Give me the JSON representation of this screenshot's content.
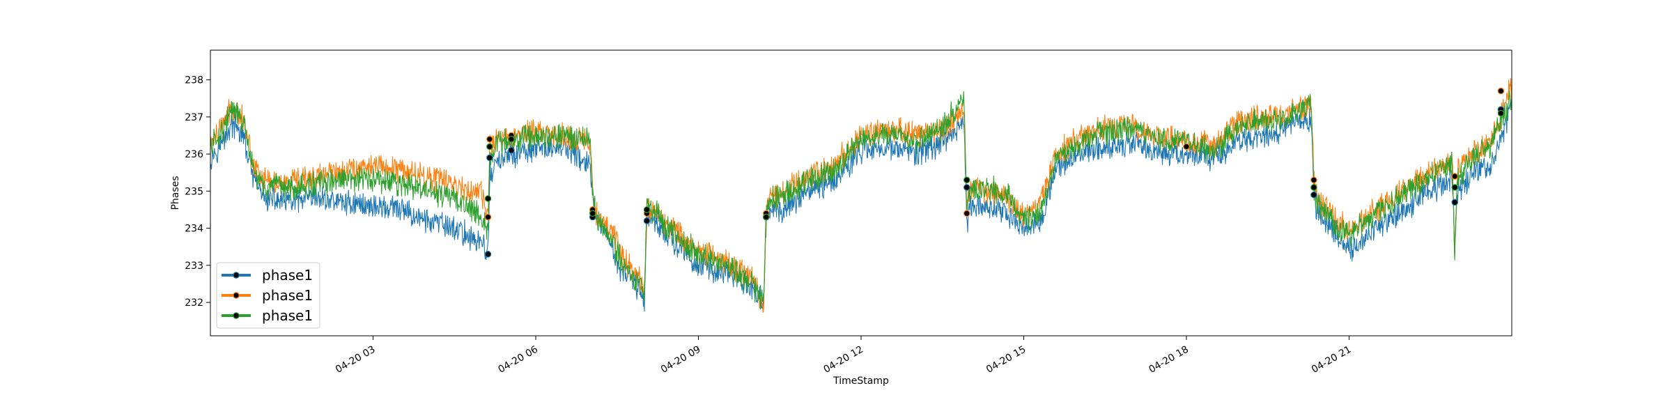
{
  "chart_data": {
    "type": "line",
    "title": "",
    "xlabel": "TimeStamp",
    "ylabel": "Phases",
    "x_range_hours": [
      0,
      24
    ],
    "ylim": [
      231.1,
      238.8
    ],
    "x_ticks": [
      {
        "hour": 3,
        "label": "04-20 03"
      },
      {
        "hour": 6,
        "label": "04-20 06"
      },
      {
        "hour": 9,
        "label": "04-20 09"
      },
      {
        "hour": 12,
        "label": "04-20 12"
      },
      {
        "hour": 15,
        "label": "04-20 15"
      },
      {
        "hour": 18,
        "label": "04-20 18"
      },
      {
        "hour": 21,
        "label": "04-20 21"
      }
    ],
    "y_ticks": [
      {
        "value": 232,
        "label": "232"
      },
      {
        "value": 233,
        "label": "233"
      },
      {
        "value": 234,
        "label": "234"
      },
      {
        "value": 235,
        "label": "235"
      },
      {
        "value": 236,
        "label": "236"
      },
      {
        "value": 237,
        "label": "237"
      },
      {
        "value": 238,
        "label": "238"
      }
    ],
    "legend_position": "lower-left",
    "series": [
      {
        "name": "phase1",
        "color": "#1f77b4",
        "x": [
          0.0,
          0.2,
          0.4,
          0.6,
          0.8,
          1.0,
          1.5,
          2.0,
          2.5,
          3.0,
          3.5,
          4.0,
          4.5,
          5.0,
          5.12,
          5.15,
          5.3,
          5.6,
          6.0,
          6.5,
          7.0,
          7.05,
          7.1,
          7.4,
          7.6,
          7.9,
          8.0,
          8.05,
          8.1,
          8.5,
          9.0,
          9.5,
          10.0,
          10.2,
          10.25,
          10.3,
          10.6,
          11.0,
          11.5,
          12.0,
          12.5,
          13.0,
          13.5,
          13.9,
          13.95,
          14.0,
          14.3,
          14.7,
          15.0,
          15.3,
          15.6,
          16.0,
          16.5,
          17.0,
          17.5,
          18.0,
          18.5,
          19.0,
          19.5,
          20.0,
          20.3,
          20.35,
          20.4,
          20.8,
          21.0,
          21.5,
          22.0,
          22.5,
          22.9,
          22.95,
          23.0,
          23.3,
          23.6,
          23.8,
          24.0
        ],
        "y": [
          235.9,
          236.3,
          236.8,
          236.5,
          235.3,
          234.8,
          234.7,
          234.8,
          234.7,
          234.6,
          234.5,
          234.2,
          234.0,
          233.6,
          233.3,
          235.4,
          235.8,
          236.0,
          236.1,
          236.2,
          235.7,
          234.8,
          234.3,
          233.5,
          232.8,
          232.4,
          232.0,
          234.2,
          234.4,
          233.7,
          233.0,
          232.8,
          232.4,
          232.0,
          234.3,
          234.5,
          234.5,
          235.0,
          235.3,
          236.1,
          236.2,
          236.0,
          236.3,
          236.9,
          234.0,
          234.6,
          234.6,
          234.4,
          234.0,
          234.2,
          235.6,
          236.0,
          236.2,
          236.3,
          236.0,
          236.0,
          235.9,
          236.4,
          236.5,
          236.8,
          236.9,
          235.2,
          234.5,
          233.8,
          233.4,
          234.0,
          234.5,
          235.0,
          235.3,
          233.5,
          235.0,
          235.5,
          235.7,
          236.4,
          237.3
        ]
      },
      {
        "name": "phase1",
        "color": "#ff7f0e",
        "x": [
          0.0,
          0.2,
          0.4,
          0.6,
          0.8,
          1.0,
          1.5,
          2.0,
          2.5,
          3.0,
          3.5,
          4.0,
          4.5,
          5.0,
          5.12,
          5.15,
          5.3,
          5.6,
          6.0,
          6.5,
          7.0,
          7.05,
          7.1,
          7.4,
          7.6,
          7.9,
          8.0,
          8.05,
          8.1,
          8.5,
          9.0,
          9.5,
          10.0,
          10.2,
          10.25,
          10.3,
          10.6,
          11.0,
          11.5,
          12.0,
          12.5,
          13.0,
          13.5,
          13.9,
          13.95,
          14.0,
          14.3,
          14.7,
          15.0,
          15.3,
          15.6,
          16.0,
          16.5,
          17.0,
          17.5,
          18.0,
          18.5,
          19.0,
          19.5,
          20.0,
          20.3,
          20.35,
          20.4,
          20.8,
          21.0,
          21.5,
          22.0,
          22.5,
          22.9,
          22.95,
          23.0,
          23.3,
          23.6,
          23.8,
          24.0
        ],
        "y": [
          236.3,
          236.7,
          237.3,
          237.0,
          235.7,
          235.3,
          235.2,
          235.4,
          235.6,
          235.7,
          235.6,
          235.4,
          235.2,
          234.9,
          234.3,
          236.2,
          236.4,
          236.5,
          236.6,
          236.5,
          236.3,
          235.2,
          234.5,
          233.9,
          233.2,
          232.7,
          232.3,
          234.4,
          234.6,
          234.0,
          233.4,
          233.1,
          232.6,
          231.9,
          234.5,
          234.9,
          235.0,
          235.4,
          235.7,
          236.5,
          236.7,
          236.5,
          236.7,
          237.2,
          234.5,
          235.1,
          235.0,
          234.8,
          234.3,
          234.6,
          236.0,
          236.4,
          236.7,
          236.8,
          236.5,
          236.4,
          236.2,
          236.9,
          237.0,
          237.2,
          237.4,
          235.3,
          234.8,
          234.2,
          233.9,
          234.5,
          235.0,
          235.5,
          235.9,
          233.4,
          235.6,
          236.0,
          236.3,
          237.0,
          237.9
        ]
      },
      {
        "name": "phase1",
        "color": "#2ca02c",
        "x": [
          0.0,
          0.2,
          0.4,
          0.6,
          0.8,
          1.0,
          1.5,
          2.0,
          2.5,
          3.0,
          3.5,
          4.0,
          4.5,
          5.0,
          5.12,
          5.15,
          5.3,
          5.6,
          6.0,
          6.5,
          7.0,
          7.05,
          7.1,
          7.4,
          7.6,
          7.9,
          8.0,
          8.05,
          8.1,
          8.5,
          9.0,
          9.5,
          10.0,
          10.2,
          10.25,
          10.3,
          10.6,
          11.0,
          11.5,
          12.0,
          12.5,
          13.0,
          13.5,
          13.9,
          13.95,
          14.0,
          14.3,
          14.7,
          15.0,
          15.3,
          15.6,
          16.0,
          16.5,
          17.0,
          17.5,
          18.0,
          18.5,
          19.0,
          19.5,
          20.0,
          20.3,
          20.35,
          20.4,
          20.8,
          21.0,
          21.5,
          22.0,
          22.5,
          22.9,
          22.95,
          23.0,
          23.3,
          23.6,
          23.8,
          24.0
        ],
        "y": [
          236.2,
          236.6,
          237.2,
          236.9,
          235.5,
          235.1,
          235.1,
          235.2,
          235.3,
          235.3,
          235.2,
          235.0,
          234.8,
          234.4,
          233.8,
          235.8,
          236.3,
          236.4,
          236.5,
          236.5,
          236.4,
          234.9,
          234.4,
          233.7,
          233.0,
          232.5,
          232.2,
          234.8,
          234.6,
          233.9,
          233.3,
          233.0,
          232.5,
          232.0,
          234.4,
          234.8,
          234.9,
          235.3,
          235.6,
          236.4,
          236.6,
          236.3,
          236.7,
          237.5,
          234.4,
          235.0,
          235.1,
          234.9,
          234.2,
          234.4,
          235.9,
          236.3,
          236.6,
          236.7,
          236.4,
          236.3,
          236.1,
          236.8,
          236.9,
          237.1,
          237.5,
          235.0,
          234.7,
          234.0,
          233.8,
          234.4,
          234.9,
          235.4,
          235.8,
          233.2,
          235.4,
          235.9,
          236.2,
          236.9,
          237.6
        ]
      }
    ],
    "gap_markers": {
      "phase1_blue": [
        [
          5.12,
          233.3
        ],
        [
          5.15,
          235.9
        ],
        [
          5.55,
          236.1
        ],
        [
          7.05,
          234.3
        ],
        [
          8.05,
          234.2
        ],
        [
          10.25,
          234.3
        ],
        [
          13.95,
          235.1
        ],
        [
          20.35,
          234.9
        ],
        [
          22.95,
          234.7
        ],
        [
          23.8,
          237.2
        ]
      ],
      "phase1_orange": [
        [
          5.12,
          234.3
        ],
        [
          5.15,
          236.4
        ],
        [
          5.55,
          236.5
        ],
        [
          7.05,
          234.5
        ],
        [
          8.05,
          234.4
        ],
        [
          10.25,
          234.4
        ],
        [
          13.95,
          234.4
        ],
        [
          18.0,
          236.2
        ],
        [
          20.35,
          235.3
        ],
        [
          22.95,
          235.4
        ],
        [
          23.8,
          237.7
        ]
      ],
      "phase1_green": [
        [
          5.12,
          234.8
        ],
        [
          5.15,
          236.2
        ],
        [
          5.55,
          236.4
        ],
        [
          7.05,
          234.4
        ],
        [
          8.05,
          234.5
        ],
        [
          10.25,
          234.3
        ],
        [
          13.95,
          235.3
        ],
        [
          20.35,
          235.1
        ],
        [
          22.95,
          235.1
        ],
        [
          23.8,
          237.1
        ]
      ]
    }
  }
}
